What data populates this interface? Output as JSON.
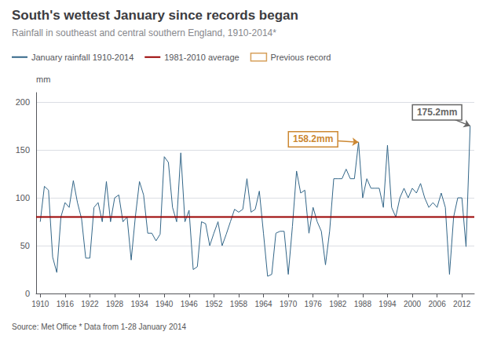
{
  "chart_data": {
    "type": "line",
    "title": "South's wettest January since records began",
    "subtitle": "Rainfall in southeast and central southern England, 1910-2014*",
    "source": "Source: Met Office * Data from 1-28 January 2014",
    "y_label": "mm",
    "x": [
      1910,
      1911,
      1912,
      1913,
      1914,
      1915,
      1916,
      1917,
      1918,
      1919,
      1920,
      1921,
      1922,
      1923,
      1924,
      1925,
      1926,
      1927,
      1928,
      1929,
      1930,
      1931,
      1932,
      1933,
      1934,
      1935,
      1936,
      1937,
      1938,
      1939,
      1940,
      1941,
      1942,
      1943,
      1944,
      1945,
      1946,
      1947,
      1948,
      1949,
      1950,
      1951,
      1952,
      1953,
      1954,
      1955,
      1956,
      1957,
      1958,
      1959,
      1960,
      1961,
      1962,
      1963,
      1964,
      1965,
      1966,
      1967,
      1968,
      1969,
      1970,
      1971,
      1972,
      1973,
      1974,
      1975,
      1976,
      1977,
      1978,
      1979,
      1980,
      1981,
      1982,
      1983,
      1984,
      1985,
      1986,
      1987,
      1988,
      1989,
      1990,
      1991,
      1992,
      1993,
      1994,
      1995,
      1996,
      1997,
      1998,
      1999,
      2000,
      2001,
      2002,
      2003,
      2004,
      2005,
      2006,
      2007,
      2008,
      2009,
      2010,
      2011,
      2012,
      2013,
      2014
    ],
    "series": [
      {
        "name": "January rainfall 1910-2014",
        "color": "#336688",
        "values": [
          75,
          112,
          108,
          38,
          22,
          80,
          95,
          90,
          118,
          95,
          78,
          37,
          37,
          90,
          95,
          75,
          117,
          75,
          100,
          103,
          75,
          80,
          35,
          80,
          117,
          103,
          63,
          63,
          55,
          62,
          143,
          137,
          90,
          75,
          147,
          75,
          87,
          25,
          28,
          75,
          73,
          50,
          63,
          75,
          50,
          62,
          75,
          88,
          85,
          88,
          120,
          85,
          88,
          107,
          63,
          18,
          20,
          63,
          65,
          65,
          20,
          70,
          128,
          105,
          108,
          63,
          90,
          75,
          65,
          30,
          65,
          120,
          120,
          120,
          130,
          120,
          120,
          158.2,
          100,
          120,
          110,
          110,
          110,
          90,
          155,
          90,
          80,
          100,
          110,
          100,
          110,
          105,
          115,
          100,
          90,
          95,
          90,
          105,
          90,
          20,
          80,
          100,
          100,
          49,
          175.2
        ]
      }
    ],
    "reference_lines": [
      {
        "y": 80,
        "name": "1981-2010 average",
        "color": "#990000"
      }
    ],
    "annotations": [
      {
        "text": "158.2mm",
        "x": 1987,
        "y": 158.2,
        "color": "#cc8833",
        "name": "Previous record"
      },
      {
        "text": "175.2mm",
        "x": 2014,
        "y": 175.2,
        "color": "#666666"
      }
    ],
    "xlim": [
      1909,
      2015
    ],
    "xticks": [
      1910,
      1916,
      1922,
      1928,
      1934,
      1940,
      1946,
      1952,
      1958,
      1964,
      1970,
      1976,
      1982,
      1988,
      1994,
      2000,
      2006,
      2012
    ],
    "ylim": [
      0,
      210
    ],
    "yticks": [
      0,
      50,
      100,
      150,
      200
    ],
    "grid": true,
    "legend": "top-left"
  }
}
